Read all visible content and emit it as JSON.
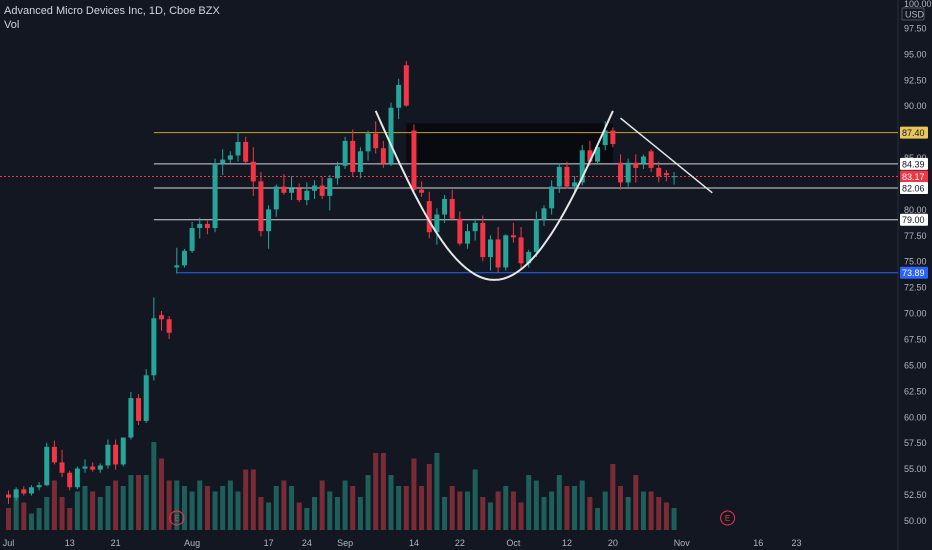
{
  "header": {
    "symbol_line": "Advanced Micro Devices Inc, 1D, Cboe BZX",
    "volume_label": "Vol"
  },
  "chart_data": {
    "type": "candlestick",
    "symbol": "Advanced Micro Devices Inc",
    "interval": "1D",
    "exchange": "Cboe BZX",
    "currency": "USD",
    "ylim": [
      48.5,
      100.0
    ],
    "y_ticks": [
      "97.50",
      "95.00",
      "92.50",
      "90.00",
      "87.50",
      "85.00",
      "82.50",
      "80.00",
      "77.50",
      "75.00",
      "72.50",
      "70.00",
      "67.50",
      "65.00",
      "62.50",
      "60.00",
      "57.50",
      "55.00",
      "52.50",
      "50.00"
    ],
    "y_top_label": "100.00",
    "x_ticks": [
      {
        "label": "Jul",
        "i": 0
      },
      {
        "label": "13",
        "i": 8
      },
      {
        "label": "21",
        "i": 14
      },
      {
        "label": "Aug",
        "i": 24
      },
      {
        "label": "17",
        "i": 34
      },
      {
        "label": "24",
        "i": 39
      },
      {
        "label": "Sep",
        "i": 44
      },
      {
        "label": "14",
        "i": 53
      },
      {
        "label": "22",
        "i": 59
      },
      {
        "label": "Oct",
        "i": 66
      },
      {
        "label": "12",
        "i": 73
      },
      {
        "label": "20",
        "i": 79
      },
      {
        "label": "Nov",
        "i": 88
      },
      {
        "label": "16",
        "i": 98
      },
      {
        "label": "23",
        "i": 103
      }
    ],
    "candles": [
      [
        52.5,
        52.9,
        51.6,
        52.2
      ],
      [
        52.2,
        53.2,
        51.9,
        53.0
      ],
      [
        53.0,
        53.3,
        52.4,
        52.6
      ],
      [
        52.6,
        53.4,
        52.4,
        53.2
      ],
      [
        53.2,
        53.7,
        52.9,
        53.4
      ],
      [
        53.4,
        57.5,
        53.3,
        57.1
      ],
      [
        57.1,
        57.7,
        55.4,
        55.6
      ],
      [
        55.6,
        56.8,
        54.2,
        54.6
      ],
      [
        54.6,
        54.8,
        52.9,
        53.2
      ],
      [
        53.2,
        55.2,
        53.0,
        55.0
      ],
      [
        55.0,
        55.9,
        54.6,
        55.2
      ],
      [
        55.2,
        55.6,
        54.7,
        54.9
      ],
      [
        54.9,
        55.5,
        54.6,
        55.3
      ],
      [
        55.3,
        57.8,
        55.0,
        57.3
      ],
      [
        57.3,
        57.8,
        54.9,
        55.4
      ],
      [
        55.4,
        58.0,
        55.2,
        58.0
      ],
      [
        58.0,
        62.4,
        57.8,
        61.8
      ],
      [
        61.8,
        62.2,
        59.2,
        59.6
      ],
      [
        59.6,
        64.6,
        59.4,
        64.0
      ],
      [
        64.0,
        71.5,
        63.5,
        69.5
      ],
      [
        69.8,
        70.2,
        68.3,
        69.4
      ],
      [
        69.4,
        69.7,
        67.5,
        68.1
      ],
      [
        74.4,
        76.3,
        73.8,
        74.6
      ],
      [
        74.6,
        76.2,
        74.4,
        76.0
      ],
      [
        76.0,
        78.8,
        75.8,
        78.2
      ],
      [
        78.2,
        79.2,
        77.2,
        78.6
      ],
      [
        78.6,
        78.9,
        77.6,
        78.2
      ],
      [
        78.2,
        84.9,
        77.8,
        84.4
      ],
      [
        84.4,
        85.8,
        83.3,
        84.8
      ],
      [
        84.8,
        85.6,
        84.3,
        85.2
      ],
      [
        85.2,
        87.4,
        84.6,
        86.5
      ],
      [
        86.5,
        87.0,
        84.4,
        84.6
      ],
      [
        84.6,
        86.0,
        81.3,
        82.7
      ],
      [
        82.7,
        83.6,
        77.4,
        77.9
      ],
      [
        77.9,
        80.4,
        76.2,
        80.0
      ],
      [
        80.0,
        82.4,
        79.3,
        82.2
      ],
      [
        82.2,
        83.4,
        81.4,
        81.6
      ],
      [
        81.6,
        83.2,
        80.9,
        82.0
      ],
      [
        82.0,
        82.5,
        80.7,
        80.9
      ],
      [
        80.9,
        82.6,
        80.4,
        81.8
      ],
      [
        81.8,
        82.8,
        81.0,
        82.3
      ],
      [
        82.3,
        83.1,
        81.0,
        81.3
      ],
      [
        81.3,
        83.3,
        79.9,
        83.0
      ],
      [
        83.0,
        84.6,
        82.4,
        84.2
      ],
      [
        84.2,
        87.0,
        83.9,
        86.6
      ],
      [
        86.6,
        87.7,
        83.2,
        83.6
      ],
      [
        83.6,
        86.0,
        83.0,
        85.6
      ],
      [
        85.6,
        87.6,
        84.7,
        87.3
      ],
      [
        87.3,
        88.5,
        85.4,
        85.9
      ],
      [
        85.9,
        86.6,
        84.0,
        84.4
      ],
      [
        84.4,
        90.3,
        84.2,
        89.8
      ],
      [
        89.8,
        92.6,
        88.7,
        92.0
      ],
      [
        93.9,
        94.3,
        89.9,
        90.0
      ],
      [
        87.6,
        88.2,
        81.5,
        81.9
      ],
      [
        81.9,
        82.7,
        81.2,
        81.6
      ],
      [
        80.8,
        81.7,
        77.2,
        77.8
      ],
      [
        77.8,
        80.1,
        76.6,
        79.5
      ],
      [
        79.5,
        81.4,
        78.7,
        81.0
      ],
      [
        81.0,
        81.9,
        78.9,
        79.1
      ],
      [
        79.1,
        79.8,
        76.5,
        76.7
      ],
      [
        76.7,
        78.6,
        76.2,
        77.9
      ],
      [
        77.9,
        79.1,
        77.0,
        78.7
      ],
      [
        78.7,
        79.4,
        75.0,
        75.4
      ],
      [
        75.4,
        77.5,
        74.1,
        77.1
      ],
      [
        77.1,
        78.3,
        73.9,
        74.4
      ],
      [
        74.4,
        77.6,
        74.1,
        77.5
      ],
      [
        77.5,
        78.7,
        76.8,
        77.3
      ],
      [
        77.3,
        78.3,
        74.3,
        74.8
      ],
      [
        74.8,
        76.1,
        74.4,
        75.9
      ],
      [
        75.9,
        79.8,
        75.4,
        79.0
      ],
      [
        79.0,
        80.4,
        78.4,
        80.1
      ],
      [
        80.1,
        82.8,
        79.5,
        82.2
      ],
      [
        82.2,
        84.4,
        81.6,
        84.1
      ],
      [
        84.1,
        84.6,
        82.0,
        82.2
      ],
      [
        82.2,
        83.2,
        81.6,
        82.6
      ],
      [
        82.6,
        86.2,
        82.3,
        85.7
      ],
      [
        85.7,
        86.6,
        84.2,
        84.6
      ],
      [
        84.6,
        86.3,
        84.3,
        86.0
      ],
      [
        86.2,
        88.5,
        85.7,
        87.6
      ],
      [
        87.6,
        87.9,
        86.0,
        86.3
      ],
      [
        84.5,
        85.3,
        81.9,
        82.6
      ],
      [
        82.6,
        84.9,
        82.2,
        84.5
      ],
      [
        84.5,
        85.3,
        82.6,
        84.0
      ],
      [
        84.4,
        85.3,
        83.9,
        85.1
      ],
      [
        85.6,
        85.8,
        83.6,
        84.0
      ],
      [
        84.0,
        84.6,
        82.6,
        83.2
      ],
      [
        83.5,
        83.8,
        82.7,
        83.3
      ],
      [
        83.2,
        83.6,
        82.4,
        83.2
      ]
    ],
    "volume": [
      4,
      7,
      5,
      3,
      4,
      6,
      9,
      6,
      4,
      7,
      8,
      7,
      6,
      8,
      9,
      8,
      10,
      10,
      10,
      16,
      13,
      9,
      9,
      8,
      7,
      9,
      8,
      7,
      8,
      9,
      7,
      11,
      11,
      6,
      5,
      8,
      9,
      8,
      5,
      4,
      6,
      9,
      7,
      6,
      9,
      8,
      6,
      10,
      14,
      14,
      10,
      8,
      8,
      13,
      8,
      12,
      14,
      6,
      8,
      7,
      7,
      11,
      6,
      5,
      7,
      8,
      7,
      5,
      10,
      9,
      6,
      7,
      10,
      8,
      8,
      9,
      6,
      4,
      7,
      12,
      8,
      6,
      10,
      7,
      7,
      6,
      5,
      4
    ],
    "horizontal_levels": [
      {
        "label": "87.40",
        "value": 87.4,
        "color": "#c9a227",
        "tag": "#e8c65a"
      },
      {
        "label": "84.39",
        "value": 84.39,
        "color": "#d1d4dc",
        "tag": "#ffffff"
      },
      {
        "label": "83.17",
        "value": 83.17,
        "color": "#f23645",
        "tag": "#f23645",
        "dashed": true
      },
      {
        "label": "82.06",
        "value": 82.06,
        "color": "#d1d4dc",
        "tag": "#ffffff"
      },
      {
        "label": "79.00",
        "value": 79.0,
        "color": "#d1d4dc",
        "tag": "#ffffff"
      },
      {
        "label": "73.89",
        "value": 73.89,
        "color": "#2962ff",
        "tag": "#2962ff"
      }
    ],
    "earnings_markers": [
      {
        "label": "E",
        "i": 22
      },
      {
        "label": "E",
        "i": 94
      }
    ],
    "colors": {
      "up": "#26a69a",
      "down": "#f23645",
      "volume_up": "#1e5f5b",
      "volume_down": "#7a2c36",
      "background": "#131722",
      "text": "#b2b5be"
    }
  }
}
